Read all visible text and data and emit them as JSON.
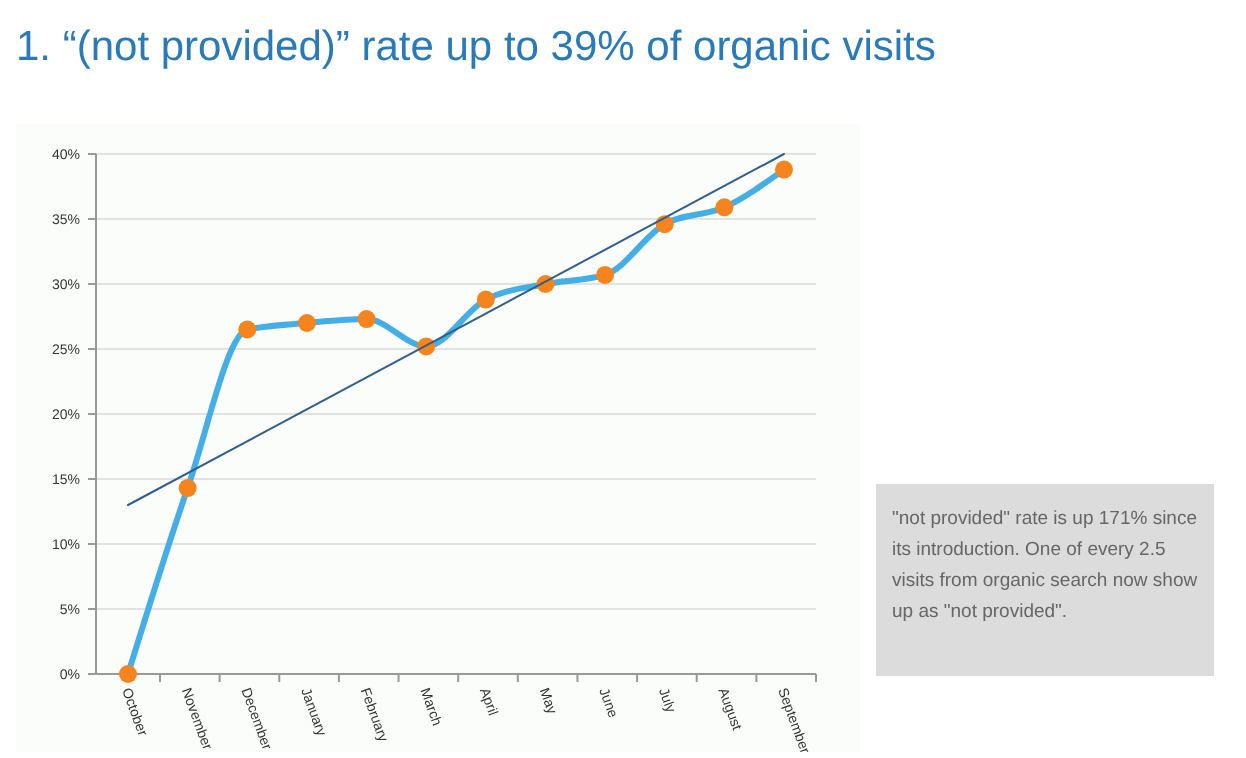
{
  "chart_data": {
    "type": "line",
    "title": "1. “(not provided)” rate up to 39% of organic visits",
    "categories": [
      "October",
      "November",
      "December",
      "January",
      "February",
      "March",
      "April",
      "May",
      "June",
      "July",
      "August",
      "September"
    ],
    "series": [
      {
        "color": "#45aee6",
        "marker": "circle",
        "values": [
          0,
          14.3,
          26.5,
          27,
          27.3,
          25.2,
          28.8,
          30,
          30.7,
          34.6,
          35.9,
          38.8
        ]
      },
      {
        "type": "line",
        "color": "#2f5f8a",
        "marker": "none",
        "x": [
          "October",
          "September"
        ],
        "values": [
          13,
          40
        ]
      }
    ],
    "ylim": [
      0,
      40
    ],
    "yticks": [
      {
        "value": 0,
        "label": "0%"
      },
      {
        "value": 5,
        "label": "5%"
      },
      {
        "value": 10,
        "label": "10%"
      },
      {
        "value": 15,
        "label": "15%"
      },
      {
        "value": 20,
        "label": "20%"
      },
      {
        "value": 25,
        "label": "25%"
      },
      {
        "value": 30,
        "label": "30%"
      },
      {
        "value": 35,
        "label": "35%"
      },
      {
        "value": 40,
        "label": "40%"
      }
    ],
    "grid": "y",
    "annotations": [
      "\"not provided\" rate is up 171% since its introduction. One of every 2.5 visits from organic search now show up as \"not provided\"."
    ]
  }
}
